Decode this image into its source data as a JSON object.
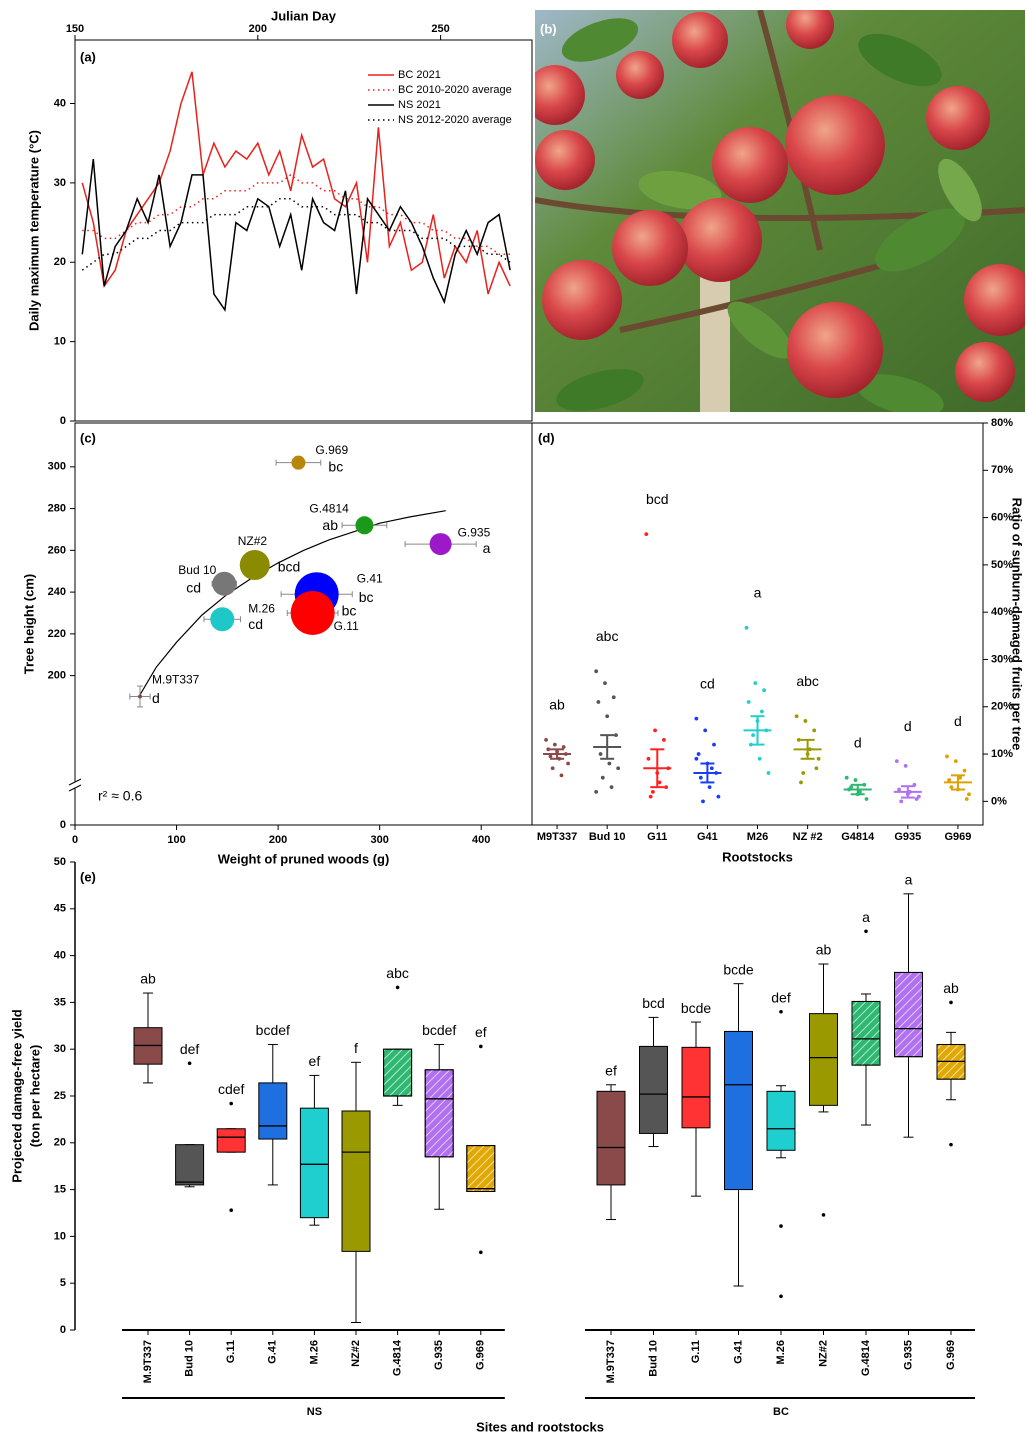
{
  "chart_data": [
    {
      "type": "line",
      "label": "(a)",
      "xlabel": "Julian Day",
      "ylabel": "Daily maximum temperature (°C)",
      "xaxis": "top",
      "xlim": [
        150,
        275
      ],
      "ylim": [
        0,
        48
      ],
      "xticks": [
        150,
        200,
        250
      ],
      "yticks": [
        0,
        10,
        20,
        30,
        40
      ],
      "x": [
        152,
        155,
        158,
        161,
        164,
        167,
        170,
        173,
        176,
        179,
        182,
        185,
        188,
        191,
        194,
        197,
        200,
        203,
        206,
        209,
        212,
        215,
        218,
        221,
        224,
        227,
        230,
        233,
        236,
        239,
        242,
        245,
        248,
        251,
        254,
        257,
        260,
        263,
        266,
        269
      ],
      "series": [
        {
          "name": "BC 2021",
          "color": "#e8211d",
          "dash": false,
          "values": [
            30,
            25,
            17,
            19,
            24,
            26,
            28,
            30,
            34,
            40,
            44,
            31,
            35,
            32,
            34,
            33,
            35,
            31,
            34,
            29,
            36,
            32,
            33,
            28,
            27,
            30,
            20,
            37,
            22,
            25,
            19,
            20,
            26,
            18,
            22,
            20,
            24,
            16,
            20,
            17
          ]
        },
        {
          "name": "BC 2010-2020 average",
          "color": "#e8211d",
          "dash": true,
          "values": [
            24,
            24,
            23,
            23,
            24,
            25,
            25,
            26,
            26,
            27,
            27,
            28,
            28,
            29,
            29,
            29,
            30,
            30,
            30,
            31,
            30,
            30,
            29,
            29,
            28,
            28,
            27,
            27,
            26,
            26,
            25,
            25,
            24,
            24,
            23,
            23,
            22,
            22,
            21,
            21
          ]
        },
        {
          "name": "NS 2021",
          "color": "#000000",
          "dash": false,
          "values": [
            21,
            33,
            17,
            22,
            24,
            28,
            25,
            31,
            22,
            25,
            31,
            31,
            16,
            14,
            25,
            24,
            28,
            27,
            22,
            26,
            19,
            28,
            25,
            24,
            29,
            16,
            28,
            26,
            24,
            27,
            25,
            22,
            18,
            15,
            21,
            24,
            21,
            25,
            26,
            19
          ]
        },
        {
          "name": "NS 2012-2020 average",
          "color": "#000000",
          "dash": true,
          "values": [
            19,
            20,
            21,
            21,
            22,
            23,
            23,
            24,
            24,
            25,
            25,
            25,
            26,
            26,
            26,
            27,
            27,
            27,
            28,
            28,
            27,
            27,
            27,
            26,
            26,
            26,
            25,
            25,
            24,
            24,
            24,
            23,
            23,
            23,
            22,
            22,
            22,
            21,
            21,
            20
          ]
        }
      ]
    },
    {
      "type": "scatter",
      "label": "(c)",
      "xlabel": "Weight of pruned woods (g)",
      "ylabel": "Tree height (cm)",
      "annotation": "r² ≈ 0.6",
      "xlim": [
        0,
        450
      ],
      "ylim": [
        0,
        321
      ],
      "ybreak": 150,
      "xticks": [
        0,
        100,
        200,
        300,
        400
      ],
      "yticks": [
        0,
        200,
        220,
        240,
        260,
        280,
        300
      ],
      "fit": {
        "x": [
          63,
          80,
          100,
          125,
          150,
          175,
          200,
          225,
          250,
          275,
          300,
          330,
          365
        ],
        "y": [
          190,
          204,
          216,
          229,
          239,
          247,
          254,
          260,
          265,
          269,
          273,
          276,
          279
        ]
      },
      "points": [
        {
          "name": "M.9T337",
          "letter": "d",
          "x": 64,
          "y": 190,
          "size": 2,
          "xerr": 10,
          "yerr": 5,
          "color": "#8b4a4a"
        },
        {
          "name": "Bud 10",
          "letter": "cd",
          "x": 147,
          "y": 244,
          "size": 12,
          "xerr": 12,
          "yerr": 4,
          "color": "#777777"
        },
        {
          "name": "M.26",
          "letter": "cd",
          "x": 145,
          "y": 227,
          "size": 12,
          "xerr": 18,
          "yerr": 4,
          "color": "#1ec8c8"
        },
        {
          "name": "NZ#2",
          "letter": "bcd",
          "x": 177,
          "y": 253,
          "size": 15,
          "xerr": 12,
          "yerr": 3,
          "color": "#8b8b00"
        },
        {
          "name": "G.41",
          "letter": "bc",
          "x": 238,
          "y": 239,
          "size": 22,
          "xerr": 35,
          "yerr": 4,
          "color": "#0000ff"
        },
        {
          "name": "G.11",
          "letter": "bc",
          "x": 234,
          "y": 230,
          "size": 22,
          "xerr": 25,
          "yerr": 4,
          "color": "#ff0000"
        },
        {
          "name": "G.4814",
          "letter": "ab",
          "x": 285,
          "y": 272,
          "size": 9,
          "xerr": 22,
          "yerr": 4,
          "color": "#1a9a1a"
        },
        {
          "name": "G.935",
          "letter": "a",
          "x": 360,
          "y": 263,
          "size": 11,
          "xerr": 35,
          "yerr": 3,
          "color": "#9b19c8"
        },
        {
          "name": "G.969",
          "letter": "bc",
          "x": 220,
          "y": 302,
          "size": 7,
          "xerr": 22,
          "yerr": 3,
          "color": "#b8860b"
        }
      ]
    },
    {
      "type": "strip",
      "label": "(d)",
      "xlabel": "Rootstocks",
      "ylabel": "Ratio of sunburn-damaged fruits per tree",
      "ylim": [
        -5,
        80
      ],
      "yticks": [
        {
          "value": 0,
          "label": "0%"
        },
        {
          "value": 10,
          "label": "10%"
        },
        {
          "value": 20,
          "label": "20%"
        },
        {
          "value": 30,
          "label": "30%"
        },
        {
          "value": 40,
          "label": "40%"
        },
        {
          "value": 50,
          "label": "50%"
        },
        {
          "value": 60,
          "label": "60%"
        },
        {
          "value": 70,
          "label": "70%"
        },
        {
          "value": 80,
          "label": "80%"
        }
      ],
      "groups": [
        {
          "category": "M9T337",
          "letter": "ab",
          "color": "#8b4a4a",
          "mean": 10,
          "se": 1,
          "points": [
            13,
            12,
            11.5,
            11,
            10.5,
            10,
            9.5,
            9,
            8,
            7,
            5.5
          ]
        },
        {
          "category": "Bud 10",
          "letter": "abc",
          "color": "#555555",
          "mean": 11.5,
          "se": 2.5,
          "points": [
            27.5,
            25,
            22,
            21,
            18,
            14,
            10,
            8,
            7,
            5,
            3,
            2
          ]
        },
        {
          "category": "G11",
          "letter": "bcd",
          "color": "#ff2020",
          "mean": 7,
          "se": 4,
          "points": [
            56.5,
            15,
            13,
            9,
            6,
            3,
            1,
            4,
            7,
            2
          ]
        },
        {
          "category": "G41",
          "letter": "cd",
          "color": "#1a3cff",
          "mean": 6,
          "se": 2,
          "points": [
            17.5,
            15,
            12,
            10,
            8,
            6,
            5,
            3,
            1,
            0,
            7,
            9
          ]
        },
        {
          "category": "M26",
          "letter": "a",
          "color": "#1fcfcf",
          "mean": 15,
          "se": 3,
          "points": [
            36.7,
            25,
            23.5,
            21,
            17,
            15,
            12,
            9,
            6,
            14,
            19
          ]
        },
        {
          "category": "NZ #2",
          "letter": "abc",
          "color": "#9a9a00",
          "mean": 11,
          "se": 2,
          "points": [
            18,
            17,
            15,
            13,
            10,
            7,
            4,
            11,
            9,
            6
          ]
        },
        {
          "category": "G4814",
          "letter": "d",
          "color": "#2eb872",
          "mean": 2.5,
          "se": 1,
          "points": [
            5,
            4.5,
            3.5,
            2.5,
            1.5,
            0.5,
            3,
            2
          ]
        },
        {
          "category": "G935",
          "letter": "d",
          "color": "#b070f0",
          "mean": 2,
          "se": 1.2,
          "points": [
            8.5,
            7.5,
            3.5,
            2.5,
            1.5,
            0.5,
            0,
            2,
            1
          ]
        },
        {
          "category": "G969",
          "letter": "d",
          "color": "#e0a000",
          "mean": 4,
          "se": 1.5,
          "points": [
            9.5,
            8.5,
            6.5,
            4.5,
            2.5,
            0.5,
            3,
            5,
            1.5
          ]
        }
      ]
    },
    {
      "type": "box",
      "label": "(e)",
      "xlabel": "Sites and rootstocks",
      "ylabel": [
        "Projected damage-free yield",
        "(ton per hectare)"
      ],
      "ylim": [
        0,
        50
      ],
      "yticks": [
        0,
        5,
        10,
        15,
        20,
        25,
        30,
        35,
        40,
        45,
        50
      ],
      "groups": [
        {
          "name": "NS",
          "boxes": [
            {
              "category": "M.9T337",
              "letter": "ab",
              "color": "#8b4a4a",
              "hatch": false,
              "whislo": 26.4,
              "q1": 28.4,
              "med": 30.4,
              "q3": 32.3,
              "whishi": 36,
              "fliers": []
            },
            {
              "category": "Bud 10",
              "letter": "def",
              "color": "#555555",
              "hatch": false,
              "whislo": 15.3,
              "q1": 15.5,
              "med": 15.8,
              "q3": 19.8,
              "whishi": 19.8,
              "fliers": [
                28.5
              ]
            },
            {
              "category": "G.11",
              "letter": "cdef",
              "color": "#ff3333",
              "hatch": false,
              "whislo": 19,
              "q1": 19,
              "med": 20.6,
              "q3": 21.5,
              "whishi": 21.5,
              "fliers": [
                24.2,
                12.8
              ]
            },
            {
              "category": "G.41",
              "letter": "bcdef",
              "color": "#1e6fe0",
              "hatch": false,
              "whislo": 15.5,
              "q1": 20.4,
              "med": 21.8,
              "q3": 26.4,
              "whishi": 30.5,
              "fliers": []
            },
            {
              "category": "M.26",
              "letter": "ef",
              "color": "#1fcfcf",
              "hatch": false,
              "whislo": 11.2,
              "q1": 12,
              "med": 17.7,
              "q3": 23.7,
              "whishi": 27.2,
              "fliers": []
            },
            {
              "category": "NZ#2",
              "letter": "f",
              "color": "#9a9a00",
              "hatch": false,
              "whislo": 0.8,
              "q1": 8.4,
              "med": 19,
              "q3": 23.4,
              "whishi": 28.6,
              "fliers": []
            },
            {
              "category": "G.4814",
              "letter": "abc",
              "color": "#2eb872",
              "hatch": true,
              "whislo": 24,
              "q1": 25,
              "med": 25,
              "q3": 30,
              "whishi": 30,
              "fliers": [
                36.6
              ]
            },
            {
              "category": "G.935",
              "letter": "bcdef",
              "color": "#b070f0",
              "hatch": true,
              "whislo": 12.9,
              "q1": 18.5,
              "med": 24.7,
              "q3": 27.8,
              "whishi": 30.5,
              "fliers": []
            },
            {
              "category": "G.969",
              "letter": "ef",
              "color": "#e0a800",
              "hatch": true,
              "whislo": 14.8,
              "q1": 14.8,
              "med": 15.1,
              "q3": 19.7,
              "whishi": 19.7,
              "fliers": [
                30.3,
                8.3
              ]
            }
          ]
        },
        {
          "name": "BC",
          "boxes": [
            {
              "category": "M.9T337",
              "letter": "ef",
              "color": "#8b4a4a",
              "hatch": false,
              "whislo": 11.8,
              "q1": 15.5,
              "med": 19.5,
              "q3": 25.5,
              "whishi": 26.2,
              "fliers": []
            },
            {
              "category": "Bud 10",
              "letter": "bcd",
              "color": "#555555",
              "hatch": false,
              "whislo": 19.6,
              "q1": 21,
              "med": 25.2,
              "q3": 30.3,
              "whishi": 33.4,
              "fliers": []
            },
            {
              "category": "G.11",
              "letter": "bcde",
              "color": "#ff3333",
              "hatch": false,
              "whislo": 14.3,
              "q1": 21.6,
              "med": 24.9,
              "q3": 30.2,
              "whishi": 32.9,
              "fliers": []
            },
            {
              "category": "G.41",
              "letter": "bcde",
              "color": "#1e6fe0",
              "hatch": false,
              "whislo": 4.7,
              "q1": 15,
              "med": 26.2,
              "q3": 31.9,
              "whishi": 37,
              "fliers": []
            },
            {
              "category": "M.26",
              "letter": "def",
              "color": "#1fcfcf",
              "hatch": false,
              "whislo": 18.4,
              "q1": 19.2,
              "med": 21.5,
              "q3": 25.5,
              "whishi": 26.1,
              "fliers": [
                34,
                11.1,
                3.6
              ]
            },
            {
              "category": "NZ#2",
              "letter": "ab",
              "color": "#9a9a00",
              "hatch": false,
              "whislo": 23.3,
              "q1": 24,
              "med": 29.1,
              "q3": 33.8,
              "whishi": 39.1,
              "fliers": [
                12.3
              ]
            },
            {
              "category": "G.4814",
              "letter": "a",
              "color": "#2eb872",
              "hatch": true,
              "whislo": 21.9,
              "q1": 28.3,
              "med": 31.1,
              "q3": 35.1,
              "whishi": 35.9,
              "fliers": [
                42.6
              ]
            },
            {
              "category": "G.935",
              "letter": "a",
              "color": "#b070f0",
              "hatch": true,
              "whislo": 20.6,
              "q1": 29.2,
              "med": 32.2,
              "q3": 38.2,
              "whishi": 46.6,
              "fliers": []
            },
            {
              "category": "G.969",
              "letter": "ab",
              "color": "#e0a800",
              "hatch": true,
              "whislo": 24.6,
              "q1": 26.8,
              "med": 28.7,
              "q3": 30.5,
              "whishi": 31.8,
              "fliers": [
                35,
                19.8
              ]
            }
          ]
        }
      ]
    }
  ],
  "photo": {
    "label": "(b)"
  }
}
